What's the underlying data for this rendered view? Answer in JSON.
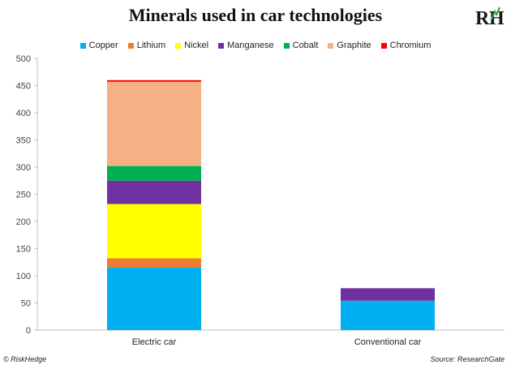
{
  "chart_data": {
    "type": "bar",
    "stacked": true,
    "title": "Minerals used in car technologies",
    "categories": [
      "Electric car",
      "Conventional car"
    ],
    "series": [
      {
        "name": "Copper",
        "color": "#00b0f0",
        "values": [
          115,
          54
        ]
      },
      {
        "name": "Lithium",
        "color": "#ed7d31",
        "values": [
          17,
          0
        ]
      },
      {
        "name": "Nickel",
        "color": "#ffff00",
        "values": [
          100,
          0
        ]
      },
      {
        "name": "Manganese",
        "color": "#7030a0",
        "values": [
          43,
          23
        ]
      },
      {
        "name": "Cobalt",
        "color": "#00b050",
        "values": [
          27,
          0
        ]
      },
      {
        "name": "Graphite",
        "color": "#f4b183",
        "values": [
          155,
          0
        ]
      },
      {
        "name": "Chromium",
        "color": "#ff0000",
        "values": [
          3,
          0
        ]
      }
    ],
    "ylim": [
      0,
      500
    ],
    "yticks": [
      0,
      50,
      100,
      150,
      200,
      250,
      300,
      350,
      400,
      450,
      500
    ],
    "legend_position": "top",
    "grid": false
  },
  "logo_text": "RH",
  "footer": {
    "credit": "© RiskHedge",
    "source": "Source: ResearchGate"
  }
}
